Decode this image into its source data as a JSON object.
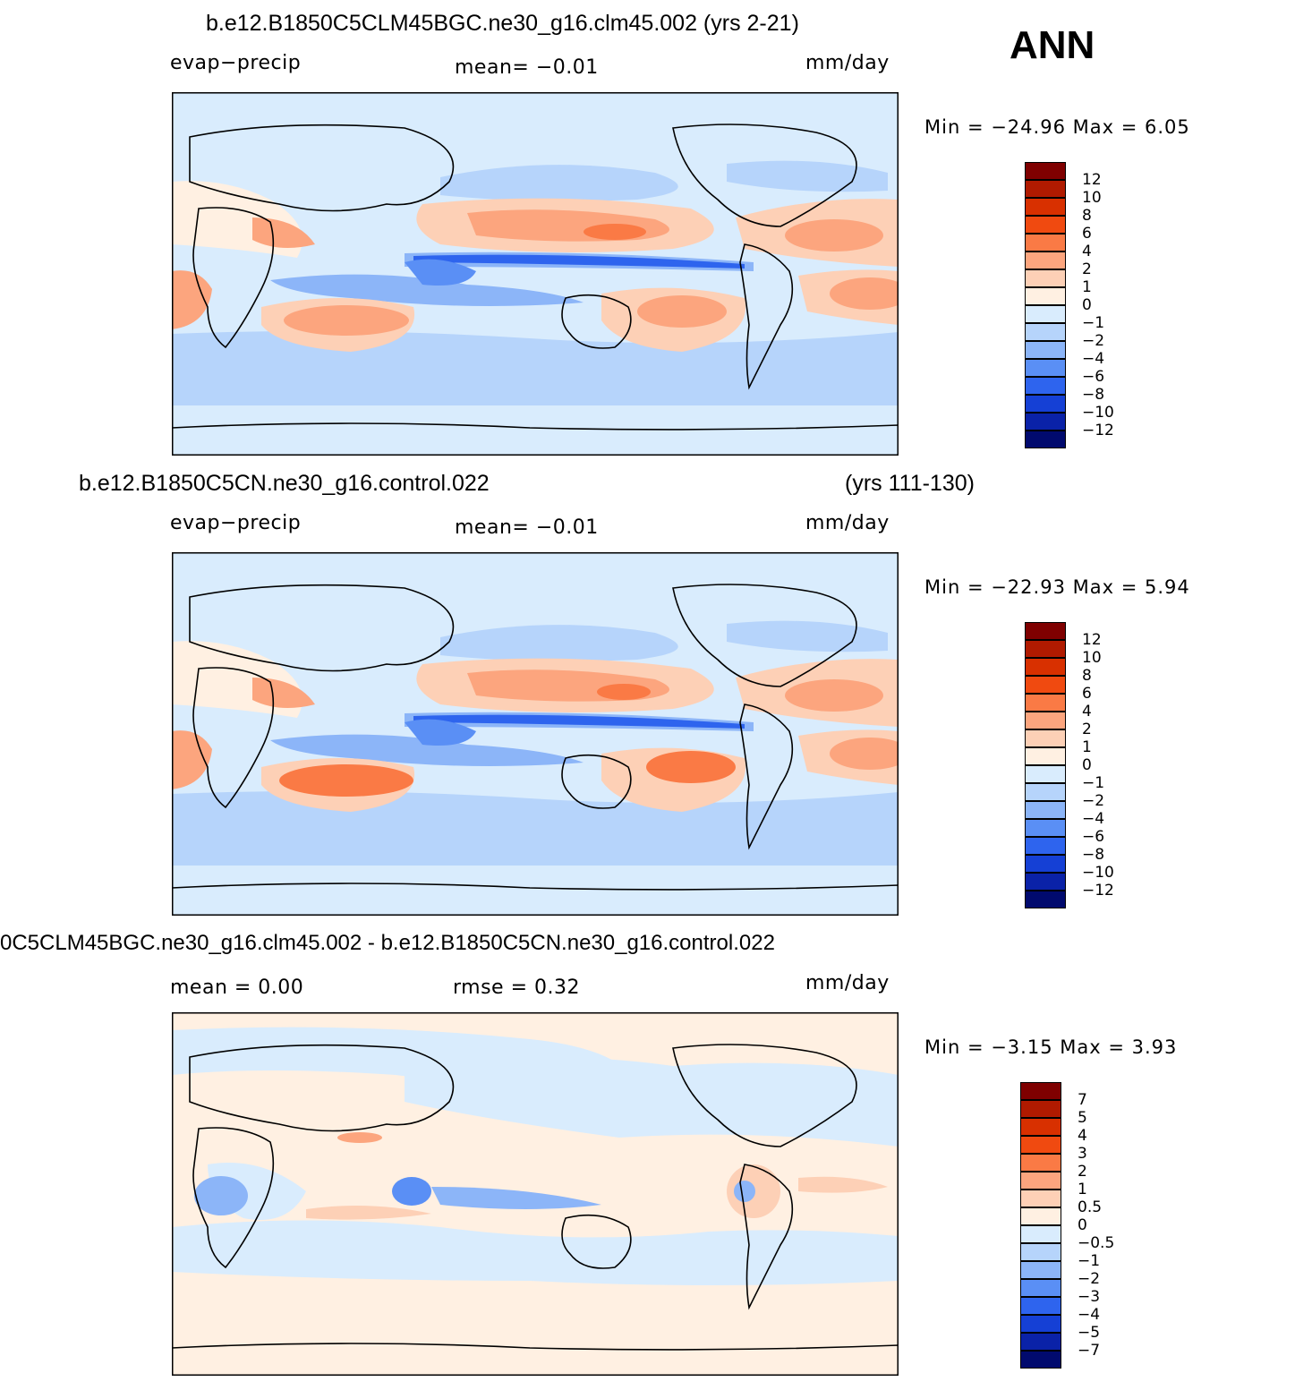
{
  "season": "ANN",
  "panels": [
    {
      "title_left": "b.e12.B1850C5CLM45BGC.ne30_g16.clm45.002 (yrs 2-21)",
      "title_right": "",
      "variable": "evap−precip",
      "stat1": "mean=   −0.01",
      "stat2": "",
      "units": "mm/day",
      "minmax": "Min  =  −24.96  Max  =      6.05",
      "levels": [
        "12",
        "10",
        "8",
        "6",
        "4",
        "2",
        "1",
        "0",
        "−1",
        "−2",
        "−4",
        "−6",
        "−8",
        "−10",
        "−12"
      ],
      "colors": [
        "#7f0000",
        "#b01a00",
        "#d83000",
        "#f04a10",
        "#fa7a45",
        "#fca57e",
        "#fdd0b6",
        "#fff0e2",
        "#d9ecfd",
        "#b6d4fb",
        "#8cb5f8",
        "#5a8ff5",
        "#2e64ee",
        "#1540d5",
        "#0a22a8",
        "#010a6e"
      ]
    },
    {
      "title_left": "b.e12.B1850C5CN.ne30_g16.control.022",
      "title_right": "(yrs 111-130)",
      "variable": "evap−precip",
      "stat1": "mean=   −0.01",
      "stat2": "",
      "units": "mm/day",
      "minmax": "Min  =  −22.93  Max  =      5.94",
      "levels": [
        "12",
        "10",
        "8",
        "6",
        "4",
        "2",
        "1",
        "0",
        "−1",
        "−2",
        "−4",
        "−6",
        "−8",
        "−10",
        "−12"
      ],
      "colors": [
        "#7f0000",
        "#b01a00",
        "#d83000",
        "#f04a10",
        "#fa7a45",
        "#fca57e",
        "#fdd0b6",
        "#fff0e2",
        "#d9ecfd",
        "#b6d4fb",
        "#8cb5f8",
        "#5a8ff5",
        "#2e64ee",
        "#1540d5",
        "#0a22a8",
        "#010a6e"
      ]
    },
    {
      "title_left": "0C5CLM45BGC.ne30_g16.clm45.002 - b.e12.B1850C5CN.ne30_g16.control.022",
      "title_right": "",
      "variable": "mean  =      0.00",
      "stat1": "rmse  =      0.32",
      "stat2": "",
      "units": "mm/day",
      "minmax": "Min  =    −3.15  Max  =      3.93",
      "levels": [
        "7",
        "5",
        "4",
        "3",
        "2",
        "1",
        "0.5",
        "0",
        "−0.5",
        "−1",
        "−2",
        "−3",
        "−4",
        "−5",
        "−7"
      ],
      "colors": [
        "#7f0000",
        "#b01a00",
        "#d83000",
        "#f04a10",
        "#fa7a45",
        "#fca57e",
        "#fdd0b6",
        "#fff0e2",
        "#d9ecfd",
        "#b6d4fb",
        "#8cb5f8",
        "#5a8ff5",
        "#2e64ee",
        "#1540d5",
        "#0a22a8",
        "#010a6e"
      ]
    }
  ],
  "field_colors": {
    "bg": "#d9ecfd",
    "pos1": "#fff0e2",
    "pos2": "#fdd0b6",
    "pos3": "#fca57e",
    "pos4": "#fa7a45",
    "neg1": "#b6d4fb",
    "neg2": "#8cb5f8",
    "neg3": "#5a8ff5",
    "neg4": "#2e64ee"
  }
}
